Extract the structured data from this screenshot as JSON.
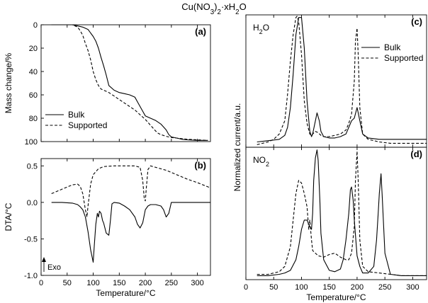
{
  "title": "Cu(NO3)2·xH2O",
  "chart_data": [
    {
      "id": "a",
      "type": "line",
      "panel_label": "(a)",
      "xlabel": "",
      "ylabel": "Mass change/%",
      "xlim": [
        0,
        325
      ],
      "ylim": [
        0,
        100
      ],
      "y_inverted": true,
      "xticks": [
        0,
        50,
        100,
        150,
        200,
        250,
        300
      ],
      "yticks": [
        0,
        20,
        40,
        60,
        80,
        100
      ],
      "legend": "bottom-left",
      "series": [
        {
          "name": "Bulk",
          "dash": "solid",
          "x": [
            20,
            60,
            70,
            80,
            90,
            100,
            105,
            110,
            115,
            120,
            125,
            130,
            140,
            150,
            160,
            170,
            180,
            185,
            190,
            195,
            200,
            210,
            220,
            230,
            240,
            245,
            250,
            260,
            270,
            280,
            300,
            320
          ],
          "y": [
            0,
            0,
            1,
            2,
            4,
            10,
            14,
            20,
            28,
            35,
            43,
            52,
            56,
            58,
            59,
            60,
            62,
            66,
            70,
            74,
            78,
            80,
            82,
            85,
            90,
            94,
            96,
            97,
            98,
            98.5,
            99,
            99
          ]
        },
        {
          "name": "Supported",
          "dash": "dashed",
          "x": [
            20,
            60,
            70,
            75,
            80,
            85,
            90,
            95,
            100,
            105,
            110,
            115,
            120,
            130,
            140,
            150,
            160,
            170,
            180,
            190,
            200,
            210,
            220,
            225,
            230,
            240,
            250,
            260,
            280,
            300,
            320
          ],
          "y": [
            0,
            0,
            2,
            5,
            9,
            16,
            22,
            30,
            40,
            47,
            52,
            55,
            56,
            58,
            61,
            64,
            67,
            70,
            73,
            77,
            81,
            86,
            91,
            93,
            94,
            95.5,
            96.5,
            97,
            98,
            98.5,
            99
          ]
        }
      ]
    },
    {
      "id": "b",
      "type": "line",
      "panel_label": "(b)",
      "xlabel": "Temperature/°C",
      "ylabel": "DTA/°C",
      "xlim": [
        0,
        325
      ],
      "ylim": [
        -1.0,
        0.6
      ],
      "xticks": [
        0,
        50,
        100,
        150,
        200,
        250,
        300
      ],
      "xtick_labels": [
        "0",
        "50",
        "100",
        "150",
        "200",
        "250",
        "300"
      ],
      "yticks": [
        -1.0,
        -0.5,
        0.0,
        0.5
      ],
      "ytick_labels": [
        "-1.0",
        "-0.5",
        "0.0",
        "0.5"
      ],
      "annotation": "Exo",
      "series": [
        {
          "name": "Bulk",
          "dash": "solid",
          "x": [
            20,
            40,
            60,
            70,
            75,
            80,
            85,
            90,
            95,
            100,
            102,
            105,
            108,
            110,
            112,
            115,
            118,
            120,
            125,
            130,
            133,
            136,
            140,
            150,
            160,
            170,
            180,
            185,
            190,
            195,
            200,
            205,
            210,
            220,
            230,
            235,
            240,
            245,
            250,
            270,
            300,
            325
          ],
          "y": [
            0,
            0,
            -0.01,
            -0.03,
            -0.06,
            -0.1,
            -0.2,
            -0.4,
            -0.65,
            -0.82,
            -0.6,
            -0.3,
            -0.15,
            -0.2,
            -0.12,
            -0.15,
            -0.25,
            -0.28,
            -0.42,
            -0.45,
            -0.25,
            -0.02,
            0,
            -0.01,
            -0.05,
            -0.1,
            -0.2,
            -0.3,
            -0.35,
            -0.28,
            -0.1,
            -0.05,
            -0.03,
            -0.03,
            -0.05,
            -0.1,
            -0.2,
            -0.15,
            0,
            0,
            0,
            0
          ]
        },
        {
          "name": "Supported",
          "dash": "dashed",
          "x": [
            20,
            40,
            60,
            70,
            75,
            80,
            85,
            88,
            90,
            95,
            100,
            110,
            120,
            140,
            160,
            180,
            190,
            195,
            198,
            200,
            202,
            205,
            210,
            220,
            240,
            260,
            280,
            300,
            325
          ],
          "y": [
            0.12,
            0.18,
            0.24,
            0.25,
            0.22,
            0.12,
            -0.1,
            -0.2,
            -0.05,
            0.25,
            0.38,
            0.46,
            0.49,
            0.5,
            0.5,
            0.5,
            0.48,
            0.3,
            0.05,
            0.02,
            0.2,
            0.45,
            0.5,
            0.48,
            0.44,
            0.38,
            0.32,
            0.27,
            0.2
          ]
        }
      ]
    },
    {
      "id": "c",
      "type": "line",
      "panel_label": "(c)",
      "species": "H2O",
      "xlabel": "",
      "ylabel": "Normalized current/a.u.",
      "xlim": [
        0,
        325
      ],
      "ylim": [
        0,
        1
      ],
      "xticks": [
        0,
        50,
        100,
        150,
        200,
        250,
        300
      ],
      "legend": "top-right",
      "series": [
        {
          "name": "Bulk",
          "dash": "solid",
          "x": [
            20,
            40,
            60,
            70,
            75,
            80,
            85,
            90,
            95,
            100,
            105,
            110,
            115,
            118,
            120,
            125,
            128,
            132,
            135,
            140,
            150,
            160,
            170,
            180,
            185,
            190,
            195,
            200,
            202,
            205,
            210,
            220,
            240,
            260,
            280,
            300,
            325
          ],
          "y": [
            0.04,
            0.05,
            0.06,
            0.09,
            0.15,
            0.3,
            0.55,
            0.85,
            0.98,
            0.98,
            0.75,
            0.35,
            0.12,
            0.08,
            0.1,
            0.2,
            0.26,
            0.2,
            0.12,
            0.08,
            0.07,
            0.07,
            0.08,
            0.1,
            0.15,
            0.2,
            0.22,
            0.3,
            0.26,
            0.2,
            0.1,
            0.07,
            0.06,
            0.06,
            0.06,
            0.06,
            0.06
          ]
        },
        {
          "name": "Supported",
          "dash": "dashed",
          "x": [
            20,
            40,
            50,
            60,
            70,
            75,
            80,
            85,
            90,
            92,
            95,
            100,
            105,
            110,
            115,
            118,
            120,
            125,
            130,
            135,
            140,
            150,
            160,
            170,
            180,
            185,
            190,
            195,
            197,
            200,
            202,
            205,
            210,
            220,
            240,
            260,
            280,
            300,
            325
          ],
          "y": [
            0.02,
            0.04,
            0.06,
            0.1,
            0.2,
            0.4,
            0.65,
            0.85,
            0.98,
            0.99,
            0.95,
            0.7,
            0.35,
            0.18,
            0.1,
            0.09,
            0.1,
            0.12,
            0.11,
            0.09,
            0.08,
            0.08,
            0.09,
            0.1,
            0.13,
            0.18,
            0.25,
            0.5,
            0.8,
            0.9,
            0.7,
            0.3,
            0.1,
            0.06,
            0.04,
            0.03,
            0.03,
            0.03,
            0.03
          ]
        }
      ]
    },
    {
      "id": "d",
      "type": "line",
      "panel_label": "(d)",
      "species": "NO2",
      "xlabel": "Temperature/°C",
      "ylabel": "",
      "xlim": [
        0,
        325
      ],
      "ylim": [
        0,
        1
      ],
      "xticks": [
        0,
        50,
        100,
        150,
        200,
        250,
        300
      ],
      "xtick_labels": [
        "0",
        "50",
        "100",
        "150",
        "200",
        "250",
        "300"
      ],
      "series": [
        {
          "name": "Bulk",
          "dash": "solid",
          "x": [
            20,
            40,
            60,
            70,
            80,
            90,
            95,
            100,
            105,
            110,
            115,
            118,
            120,
            122,
            125,
            128,
            130,
            133,
            135,
            140,
            150,
            160,
            170,
            175,
            180,
            185,
            188,
            190,
            193,
            195,
            200,
            205,
            210,
            220,
            230,
            235,
            238,
            240,
            243,
            245,
            250,
            260,
            280,
            300,
            325
          ],
          "y": [
            0.03,
            0.03,
            0.04,
            0.05,
            0.07,
            0.15,
            0.25,
            0.38,
            0.45,
            0.45,
            0.4,
            0.38,
            0.5,
            0.75,
            0.92,
            0.98,
            0.9,
            0.6,
            0.35,
            0.15,
            0.07,
            0.06,
            0.08,
            0.15,
            0.3,
            0.5,
            0.68,
            0.7,
            0.6,
            0.45,
            0.18,
            0.1,
            0.05,
            0.05,
            0.1,
            0.3,
            0.5,
            0.65,
            0.8,
            0.65,
            0.2,
            0.04,
            0.03,
            0.03,
            0.03
          ]
        },
        {
          "name": "Supported",
          "dash": "dashed",
          "x": [
            20,
            40,
            60,
            70,
            80,
            85,
            90,
            95,
            100,
            105,
            110,
            113,
            115,
            118,
            120,
            125,
            130,
            140,
            150,
            160,
            170,
            180,
            185,
            190,
            195,
            197,
            200,
            202,
            205,
            210,
            220,
            240,
            260,
            280,
            300,
            325
          ],
          "y": [
            0.04,
            0.04,
            0.06,
            0.1,
            0.25,
            0.45,
            0.65,
            0.75,
            0.73,
            0.65,
            0.55,
            0.38,
            0.45,
            0.3,
            0.22,
            0.2,
            0.18,
            0.17,
            0.19,
            0.2,
            0.17,
            0.15,
            0.15,
            0.2,
            0.4,
            0.75,
            0.97,
            0.75,
            0.3,
            0.1,
            0.06,
            0.05,
            0.04,
            0.03,
            0.03,
            0.03
          ]
        }
      ]
    }
  ]
}
